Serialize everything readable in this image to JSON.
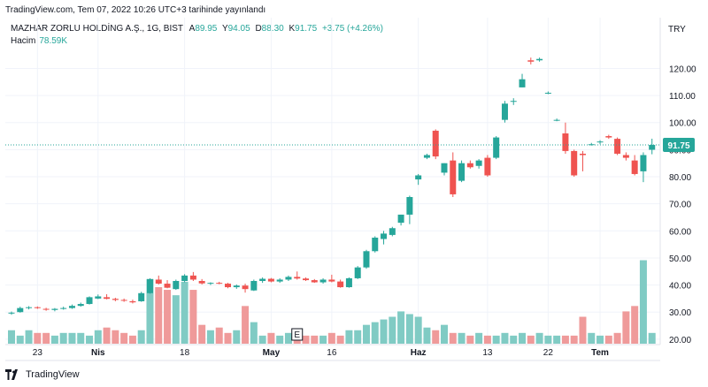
{
  "header": {
    "published": "TradingView.com, Tem 07, 2022 10:26 UTC+3 tarihinde yayınlandı"
  },
  "legend": {
    "symbol": "MAZHAR ZORLU HOLDİNG A.Ş., 1G, BIST",
    "open_label": "A",
    "open": "89.95",
    "high_label": "Y",
    "high": "94.05",
    "low_label": "D",
    "low": "88.30",
    "close_label": "K",
    "close": "91.75",
    "change": "+3.75 (+4.26%)",
    "volume_label": "Hacim",
    "volume_value": "78.59K"
  },
  "currency": "TRY",
  "last_price_label": "91.75",
  "event_marker": "E",
  "footer": {
    "brand": "TradingView"
  },
  "colors": {
    "up": "#26a69a",
    "down": "#ef5350",
    "up_vol": "#80cbc4",
    "down_vol": "#ef9a9a",
    "price_line": "#26a69a"
  },
  "chart_data": {
    "type": "candlestick",
    "ylim": [
      18,
      127
    ],
    "yticks": [
      20,
      30,
      40,
      50,
      60,
      70,
      80,
      90,
      100,
      110,
      120
    ],
    "ytick_labels": [
      "20.00",
      "30.00",
      "40.00",
      "50.00",
      "60.00",
      "70.00",
      "80.00",
      "90.00",
      "100.00",
      "110.00",
      "120.00"
    ],
    "xticks": [
      {
        "label": "23",
        "index": 3,
        "bold": false
      },
      {
        "label": "Nis",
        "index": 10,
        "bold": true
      },
      {
        "label": "18",
        "index": 20,
        "bold": false
      },
      {
        "label": "May",
        "index": 30,
        "bold": true
      },
      {
        "label": "16",
        "index": 37,
        "bold": false
      },
      {
        "label": "Haz",
        "index": 47,
        "bold": true
      },
      {
        "label": "13",
        "index": 55,
        "bold": false
      },
      {
        "label": "22",
        "index": 62,
        "bold": false
      },
      {
        "label": "Tem",
        "index": 68,
        "bold": true
      }
    ],
    "last_price": 91.75,
    "ohlc": [
      [
        29.5,
        30.2,
        29.0,
        29.8
      ],
      [
        30.0,
        32.0,
        29.8,
        31.5
      ],
      [
        31.5,
        32.2,
        31.0,
        31.8
      ],
      [
        31.8,
        32.1,
        31.2,
        31.5
      ],
      [
        31.2,
        31.6,
        30.5,
        31.0
      ],
      [
        30.8,
        31.5,
        30.3,
        31.2
      ],
      [
        31.2,
        32.0,
        30.9,
        31.5
      ],
      [
        31.5,
        32.8,
        31.2,
        32.3
      ],
      [
        32.3,
        33.5,
        32.0,
        33.0
      ],
      [
        33.0,
        35.8,
        32.8,
        35.5
      ],
      [
        35.0,
        36.5,
        34.8,
        35.8
      ],
      [
        35.5,
        36.6,
        34.7,
        34.9
      ],
      [
        34.9,
        35.3,
        34.0,
        34.5
      ],
      [
        34.5,
        35.0,
        33.8,
        34.2
      ],
      [
        34.0,
        34.6,
        33.2,
        33.6
      ],
      [
        34.0,
        37.5,
        33.8,
        37.0
      ],
      [
        37.0,
        42.5,
        36.8,
        42.2
      ],
      [
        42.0,
        43.5,
        40.2,
        40.5
      ],
      [
        40.5,
        41.8,
        38.8,
        39.0
      ],
      [
        38.5,
        42.0,
        38.2,
        41.5
      ],
      [
        41.5,
        44.0,
        41.0,
        43.5
      ],
      [
        43.5,
        44.8,
        41.5,
        42.0
      ],
      [
        41.5,
        42.2,
        40.2,
        40.6
      ],
      [
        40.6,
        41.0,
        40.0,
        40.8
      ],
      [
        40.8,
        41.2,
        40.3,
        40.7
      ],
      [
        40.5,
        40.8,
        38.8,
        39.2
      ],
      [
        39.2,
        40.2,
        38.6,
        39.8
      ],
      [
        39.8,
        40.5,
        37.2,
        38.5
      ],
      [
        38.0,
        42.0,
        37.8,
        41.5
      ],
      [
        41.5,
        42.8,
        40.8,
        42.3
      ],
      [
        42.3,
        42.6,
        41.0,
        41.3
      ],
      [
        41.3,
        42.5,
        40.8,
        42.0
      ],
      [
        42.0,
        43.5,
        41.5,
        43.0
      ],
      [
        43.0,
        45.0,
        42.0,
        42.4
      ],
      [
        42.4,
        42.8,
        41.5,
        41.8
      ],
      [
        41.8,
        42.2,
        40.8,
        41.0
      ],
      [
        41.0,
        42.5,
        40.5,
        42.0
      ],
      [
        42.0,
        43.8,
        41.0,
        41.3
      ],
      [
        41.3,
        42.0,
        39.0,
        39.2
      ],
      [
        39.2,
        42.8,
        39.0,
        42.5
      ],
      [
        42.5,
        47.0,
        42.2,
        46.5
      ],
      [
        46.5,
        53.0,
        46.0,
        52.5
      ],
      [
        52.5,
        58.0,
        52.0,
        57.5
      ],
      [
        57.0,
        60.0,
        55.0,
        59.0
      ],
      [
        58.5,
        61.5,
        58.0,
        61.0
      ],
      [
        63.0,
        66.0,
        62.0,
        66.0
      ],
      [
        66.0,
        73.0,
        62.5,
        72.5
      ],
      [
        79.0,
        81.0,
        77.0,
        80.5
      ],
      [
        87.0,
        88.5,
        86.5,
        88.0
      ],
      [
        97.0,
        97.5,
        86.5,
        87.5
      ],
      [
        81.5,
        85.0,
        80.5,
        85.0
      ],
      [
        86.0,
        89.0,
        72.5,
        73.5
      ],
      [
        78.5,
        86.0,
        78.0,
        85.0
      ],
      [
        85.0,
        86.0,
        83.0,
        83.5
      ],
      [
        84.0,
        86.5,
        83.0,
        86.0
      ],
      [
        87.0,
        88.0,
        80.0,
        80.5
      ],
      [
        87.0,
        95.0,
        86.5,
        94.5
      ],
      [
        101.0,
        108.0,
        100.0,
        107.0
      ],
      [
        108.0,
        109.0,
        106.5,
        108.0
      ],
      [
        113.0,
        118.0,
        113.0,
        116.0
      ],
      [
        123.0,
        124.0,
        121.5,
        122.5
      ],
      [
        123.0,
        124.0,
        122.5,
        123.5
      ],
      [
        111.0,
        111.5,
        110.5,
        111.0
      ],
      [
        101.0,
        101.5,
        100.5,
        101.0
      ],
      [
        96.0,
        100.0,
        88.5,
        89.5
      ],
      [
        89.5,
        90.0,
        80.0,
        80.5
      ],
      [
        88.5,
        89.5,
        82.0,
        88.0
      ],
      [
        92.0,
        92.5,
        91.5,
        92.0
      ],
      [
        93.0,
        93.5,
        92.0,
        93.0
      ],
      [
        95.0,
        95.5,
        94.0,
        94.5
      ],
      [
        94.0,
        94.5,
        88.0,
        88.5
      ],
      [
        88.0,
        89.0,
        86.0,
        87.0
      ],
      [
        86.0,
        88.0,
        80.5,
        81.0
      ],
      [
        82.0,
        89.0,
        78.0,
        88.0
      ],
      [
        89.95,
        94.05,
        88.3,
        91.75
      ]
    ],
    "volume": [
      5,
      3,
      5,
      4,
      4,
      3,
      4,
      4,
      4,
      3,
      5,
      6,
      5,
      4,
      3,
      5,
      24,
      21,
      20,
      18,
      23,
      20,
      7,
      5,
      6,
      4,
      5,
      14,
      8,
      3,
      4,
      3,
      4,
      4,
      3,
      3,
      3,
      4,
      3,
      5,
      5,
      7,
      8,
      9,
      10,
      12,
      11,
      10,
      6,
      5,
      7,
      4,
      4,
      3,
      4,
      3,
      3,
      4,
      3,
      4,
      3,
      4,
      3,
      3,
      3,
      3,
      10,
      4,
      3,
      3,
      4,
      12,
      14,
      31,
      4
    ],
    "volume_ylim": [
      0,
      31.5
    ]
  }
}
